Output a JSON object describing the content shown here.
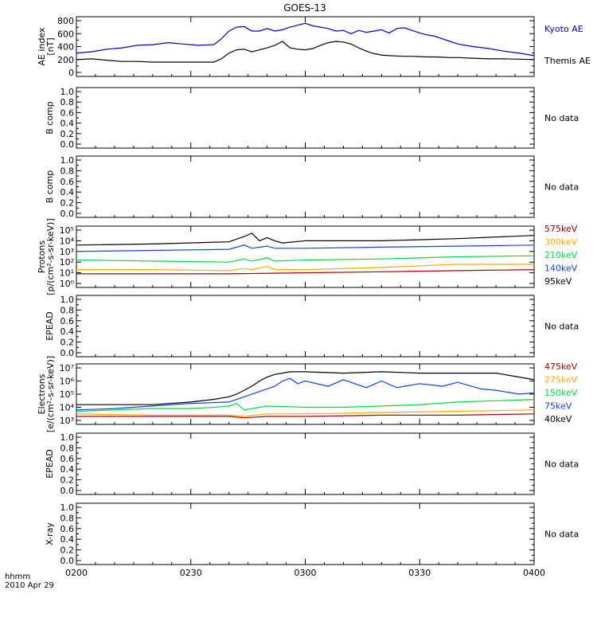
{
  "title": "GOES-13",
  "footer": {
    "label_line1": "hhmm",
    "label_line2": "2010 Apr 29"
  },
  "x_axis": {
    "ticks": [
      "0200",
      "0230",
      "0300",
      "0330",
      "0400"
    ],
    "range": [
      0,
      120
    ],
    "unit": "minutes"
  },
  "colors": {
    "kyoto_ae": "#0000cc",
    "themis_ae": "#000000",
    "black": "#000000",
    "blue": "#1040ff",
    "green": "#00dd40",
    "orange": "#ffaa00",
    "darkred": "#aa0000"
  },
  "chart_data": [
    {
      "panel": "ae_index",
      "type": "line",
      "ylabel": [
        "AE index",
        "[nT]"
      ],
      "ylim": [
        0,
        800
      ],
      "yticks": [
        "0",
        "200",
        "400",
        "600",
        "800"
      ],
      "legend": [
        "Kyoto AE",
        "Themis AE"
      ],
      "series": [
        {
          "name": "Kyoto AE",
          "color": "kyoto_ae",
          "x": [
            0,
            4,
            8,
            12,
            16,
            20,
            24,
            28,
            32,
            36,
            38,
            40,
            42,
            44,
            46,
            48,
            50,
            52,
            54,
            56,
            58,
            60,
            62,
            64,
            66,
            68,
            70,
            72,
            74,
            76,
            78,
            80,
            82,
            84,
            86,
            88,
            90,
            92,
            94,
            96,
            98,
            100,
            104,
            108,
            112,
            116,
            120
          ],
          "y": [
            300,
            320,
            360,
            380,
            420,
            430,
            460,
            440,
            420,
            430,
            520,
            640,
            700,
            710,
            640,
            640,
            680,
            640,
            660,
            700,
            730,
            760,
            720,
            700,
            680,
            640,
            650,
            600,
            650,
            620,
            640,
            660,
            610,
            680,
            690,
            650,
            610,
            580,
            560,
            520,
            480,
            440,
            400,
            370,
            330,
            300,
            260
          ]
        },
        {
          "name": "Themis AE",
          "color": "themis_ae",
          "x": [
            0,
            4,
            8,
            12,
            16,
            20,
            24,
            28,
            32,
            36,
            38,
            40,
            42,
            44,
            46,
            48,
            50,
            52,
            54,
            56,
            58,
            60,
            62,
            64,
            66,
            68,
            70,
            72,
            74,
            76,
            78,
            80,
            82,
            84,
            86,
            88,
            90,
            92,
            94,
            96,
            98,
            100,
            104,
            108,
            112,
            116,
            120
          ],
          "y": [
            200,
            210,
            190,
            170,
            170,
            160,
            160,
            160,
            160,
            160,
            210,
            300,
            350,
            360,
            320,
            350,
            380,
            420,
            480,
            380,
            360,
            350,
            370,
            420,
            460,
            480,
            470,
            440,
            380,
            330,
            290,
            270,
            260,
            255,
            250,
            250,
            245,
            240,
            240,
            235,
            230,
            230,
            220,
            210,
            210,
            205,
            200
          ]
        }
      ]
    },
    {
      "panel": "b_comp_1",
      "type": "line",
      "ylabel": [
        "B comp"
      ],
      "ylim": [
        0,
        1
      ],
      "yticks": [
        "0.0",
        "0.2",
        "0.4",
        "0.6",
        "0.8",
        "1.0"
      ],
      "status": "No data"
    },
    {
      "panel": "b_comp_2",
      "type": "line",
      "ylabel": [
        "B comp"
      ],
      "ylim": [
        0,
        1
      ],
      "yticks": [
        "0.0",
        "0.2",
        "0.4",
        "0.6",
        "0.8",
        "1.0"
      ],
      "status": "No data"
    },
    {
      "panel": "protons",
      "type": "line",
      "log_scale": true,
      "ylabel": [
        "Protons",
        "[p/(cm²-s-sr-keV)]"
      ],
      "ylim_log10": [
        0,
        5
      ],
      "yticks": [
        "10⁰",
        "10¹",
        "10²",
        "10³",
        "10⁴",
        "10⁵"
      ],
      "legend": [
        "575keV",
        "300keV",
        "210keV",
        "140keV",
        "95keV"
      ],
      "legend_colors": [
        "darkred",
        "orange",
        "green",
        "blue",
        "black"
      ],
      "series": [
        {
          "name": "95keV",
          "color": "black",
          "x": [
            0,
            20,
            40,
            44,
            46,
            48,
            50,
            52,
            54,
            60,
            80,
            100,
            120
          ],
          "log10y": [
            3.6,
            3.7,
            3.9,
            4.4,
            4.7,
            4.0,
            4.3,
            4.0,
            3.8,
            4.0,
            4.0,
            4.2,
            4.5
          ]
        },
        {
          "name": "140keV",
          "color": "blue",
          "x": [
            0,
            20,
            40,
            44,
            46,
            50,
            52,
            60,
            80,
            100,
            120
          ],
          "log10y": [
            3.0,
            3.1,
            3.2,
            3.6,
            3.3,
            3.5,
            3.3,
            3.3,
            3.4,
            3.5,
            3.6
          ]
        },
        {
          "name": "210keV",
          "color": "green",
          "x": [
            0,
            20,
            40,
            44,
            46,
            50,
            52,
            60,
            80,
            100,
            120
          ],
          "log10y": [
            2.2,
            2.1,
            2.0,
            2.3,
            2.1,
            2.4,
            2.1,
            2.2,
            2.3,
            2.5,
            2.6
          ]
        },
        {
          "name": "300keV",
          "color": "orange",
          "x": [
            0,
            20,
            40,
            44,
            46,
            50,
            52,
            60,
            80,
            100,
            120
          ],
          "log10y": [
            1.3,
            1.3,
            1.2,
            1.4,
            1.3,
            1.6,
            1.3,
            1.3,
            1.5,
            1.8,
            1.8
          ]
        },
        {
          "name": "575keV",
          "color": "darkred",
          "x": [
            0,
            20,
            40,
            60,
            80,
            100,
            120
          ],
          "log10y": [
            0.9,
            0.9,
            0.9,
            1.0,
            1.1,
            1.2,
            1.3
          ]
        }
      ]
    },
    {
      "panel": "epead_1",
      "type": "line",
      "ylabel": [
        "EPEAD"
      ],
      "ylim": [
        0,
        1
      ],
      "yticks": [
        "0.0",
        "0.2",
        "0.4",
        "0.6",
        "0.8",
        "1.0"
      ],
      "status": "No data"
    },
    {
      "panel": "electrons",
      "type": "line",
      "log_scale": true,
      "ylabel": [
        "Electrons",
        "[e/(cm²-s-sr-keV)]"
      ],
      "ylim_log10": [
        3,
        7
      ],
      "yticks": [
        "10³",
        "10⁴",
        "10⁵",
        "10⁶",
        "10⁷"
      ],
      "legend": [
        "475keV",
        "275keV",
        "150keV",
        "75keV",
        "40keV"
      ],
      "legend_colors": [
        "darkred",
        "orange",
        "green",
        "blue",
        "black"
      ],
      "series": [
        {
          "name": "40keV",
          "color": "black",
          "x": [
            0,
            10,
            20,
            30,
            36,
            40,
            42,
            44,
            46,
            48,
            50,
            52,
            54,
            56,
            58,
            60,
            70,
            80,
            90,
            100,
            110,
            114,
            120
          ],
          "log10y": [
            4.2,
            4.2,
            4.2,
            4.4,
            4.6,
            4.8,
            5.0,
            5.3,
            5.6,
            6.0,
            6.3,
            6.5,
            6.6,
            6.7,
            6.7,
            6.7,
            6.6,
            6.7,
            6.6,
            6.6,
            6.6,
            6.4,
            6.1
          ]
        },
        {
          "name": "75keV",
          "color": "blue",
          "x": [
            0,
            10,
            20,
            30,
            40,
            44,
            48,
            52,
            54,
            56,
            58,
            60,
            66,
            70,
            76,
            80,
            84,
            90,
            96,
            100,
            106,
            110,
            116,
            120
          ],
          "log10y": [
            3.8,
            3.9,
            4.1,
            4.3,
            4.4,
            4.8,
            5.2,
            5.6,
            6.0,
            6.2,
            5.8,
            6.0,
            5.6,
            6.1,
            5.5,
            6.0,
            5.5,
            5.8,
            5.6,
            5.9,
            5.4,
            5.3,
            5.0,
            5.1
          ]
        },
        {
          "name": "150keV",
          "color": "green",
          "x": [
            0,
            10,
            20,
            30,
            36,
            40,
            42,
            44,
            50,
            60,
            70,
            80,
            90,
            100,
            110,
            120
          ],
          "log10y": [
            3.7,
            3.8,
            3.9,
            3.9,
            4.0,
            4.1,
            4.3,
            3.8,
            4.1,
            4.0,
            4.0,
            4.1,
            4.2,
            4.4,
            4.5,
            4.6
          ]
        },
        {
          "name": "275keV",
          "color": "orange",
          "x": [
            0,
            20,
            40,
            44,
            50,
            60,
            80,
            100,
            120
          ],
          "log10y": [
            3.5,
            3.4,
            3.4,
            3.3,
            3.5,
            3.5,
            3.6,
            3.7,
            3.8
          ]
        },
        {
          "name": "475keV",
          "color": "darkred",
          "x": [
            0,
            20,
            40,
            44,
            50,
            60,
            80,
            100,
            120
          ],
          "log10y": [
            3.3,
            3.3,
            3.3,
            3.2,
            3.3,
            3.3,
            3.4,
            3.4,
            3.5
          ]
        }
      ]
    },
    {
      "panel": "epead_2",
      "type": "line",
      "ylabel": [
        "EPEAD"
      ],
      "ylim": [
        0,
        1
      ],
      "yticks": [
        "0.0",
        "0.2",
        "0.4",
        "0.6",
        "0.8",
        "1.0"
      ],
      "status": "No data"
    },
    {
      "panel": "x_ray",
      "type": "line",
      "ylabel": [
        "X-ray"
      ],
      "ylim": [
        0,
        1
      ],
      "yticks": [
        "0.0",
        "0.2",
        "0.4",
        "0.6",
        "0.8",
        "1.0"
      ],
      "status": "No data"
    }
  ]
}
